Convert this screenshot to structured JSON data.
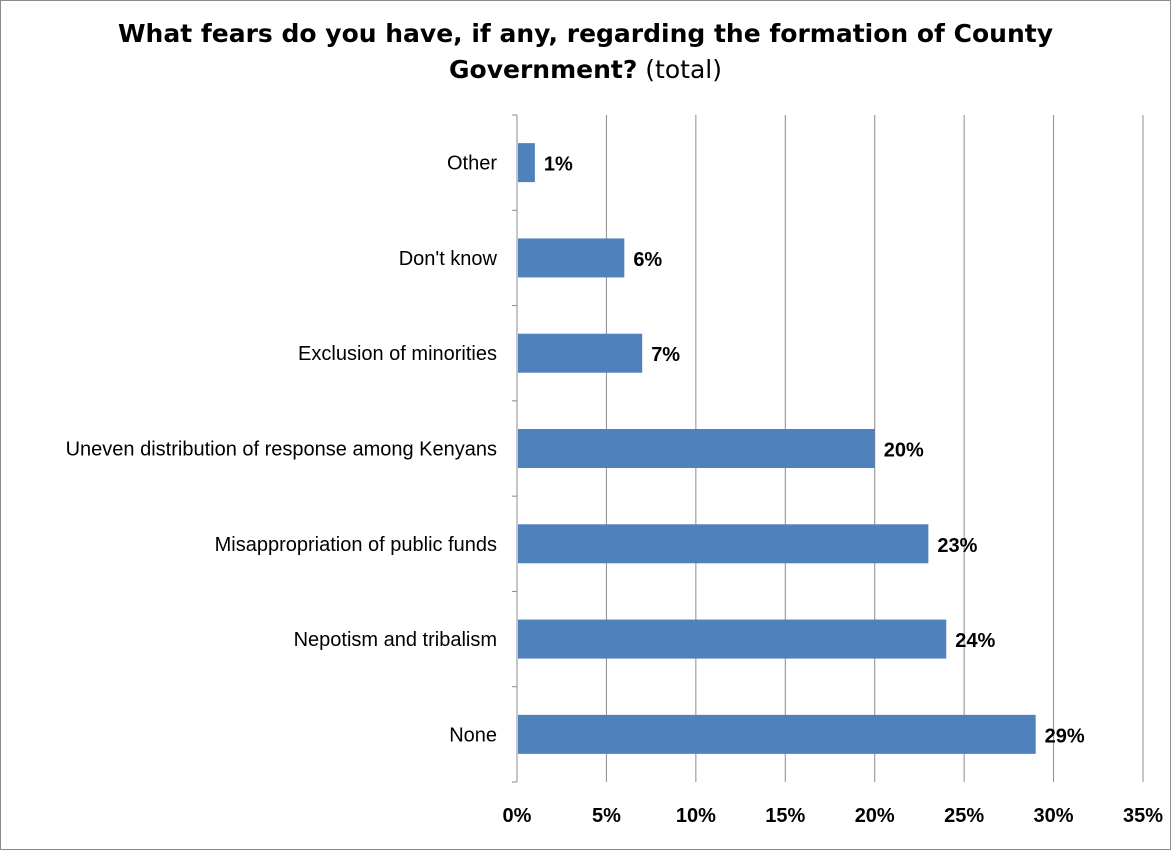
{
  "chart_data": {
    "type": "bar",
    "orientation": "horizontal",
    "title_bold_line1": "What fears do you have, if any, regarding the formation of County",
    "title_bold_line2": "Government?",
    "title_normal_suffix": " (total)",
    "categories": [
      "None",
      "Nepotism and tribalism",
      "Misappropriation of public funds",
      "Uneven distribution of response among Kenyans",
      "Exclusion of minorities",
      "Don't know",
      "Other"
    ],
    "values": [
      29,
      24,
      23,
      20,
      7,
      6,
      1
    ],
    "value_labels": [
      "29%",
      "24%",
      "23%",
      "20%",
      "7%",
      "6%",
      "1%"
    ],
    "xlim": [
      0,
      35
    ],
    "x_ticks": [
      0,
      5,
      10,
      15,
      20,
      25,
      30,
      35
    ],
    "x_tick_labels": [
      "0%",
      "5%",
      "10%",
      "15%",
      "20%",
      "25%",
      "30%",
      "35%"
    ],
    "grid": "vertical",
    "legend": "none",
    "colors": {
      "bar": "#4f81bd",
      "grid": "#8c8c8c",
      "text": "#000000"
    }
  }
}
